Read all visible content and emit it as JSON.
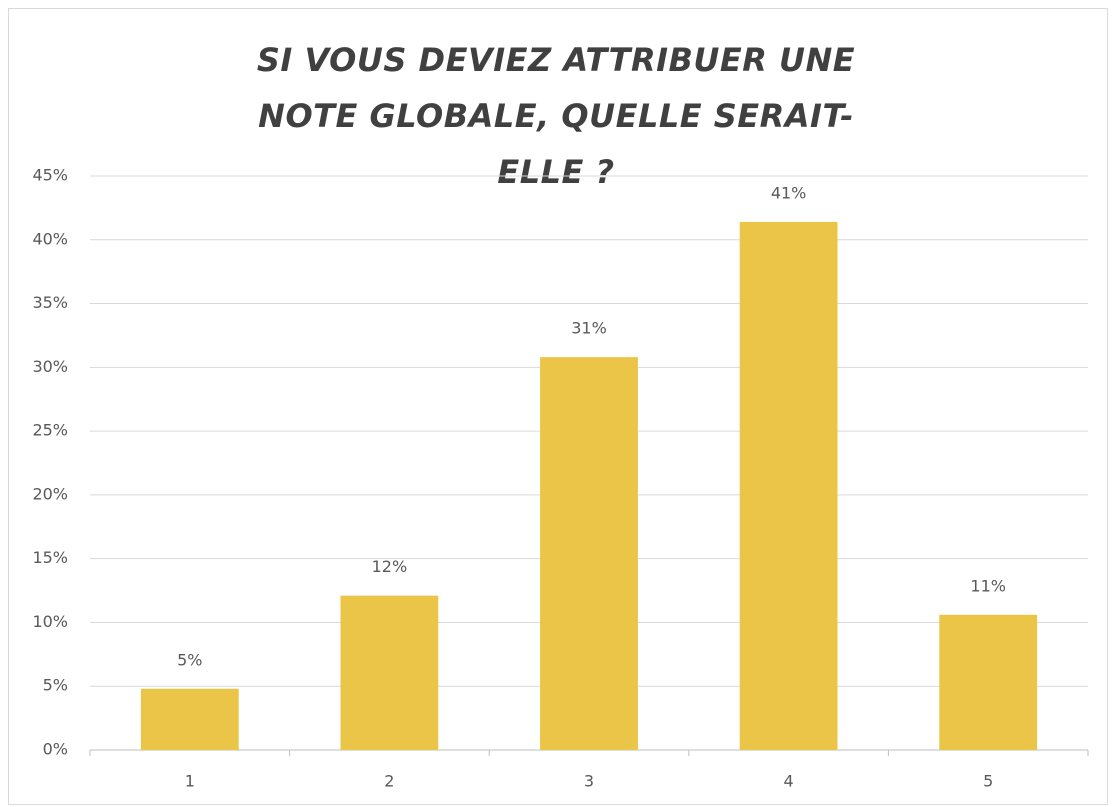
{
  "chart_data": {
    "type": "bar",
    "title": "SI VOUS DEVIEZ ATTRIBUER UNE NOTE GLOBALE, QUELLE SERAIT-ELLE ?",
    "categories": [
      "1",
      "2",
      "3",
      "4",
      "5"
    ],
    "values": [
      4.8,
      12.1,
      30.8,
      41.4,
      10.6
    ],
    "value_labels": [
      "5%",
      "12%",
      "31%",
      "41%",
      "11%"
    ],
    "color": "#ebc547",
    "ylim": [
      0,
      45
    ],
    "yticks": [
      {
        "value": 0,
        "label": "0%"
      },
      {
        "value": 5,
        "label": "5%"
      },
      {
        "value": 10,
        "label": "10%"
      },
      {
        "value": 15,
        "label": "15%"
      },
      {
        "value": 20,
        "label": "20%"
      },
      {
        "value": 25,
        "label": "25%"
      },
      {
        "value": 30,
        "label": "30%"
      },
      {
        "value": 35,
        "label": "35%"
      },
      {
        "value": 40,
        "label": "40%"
      },
      {
        "value": 45,
        "label": "45%"
      }
    ],
    "grid": true
  }
}
